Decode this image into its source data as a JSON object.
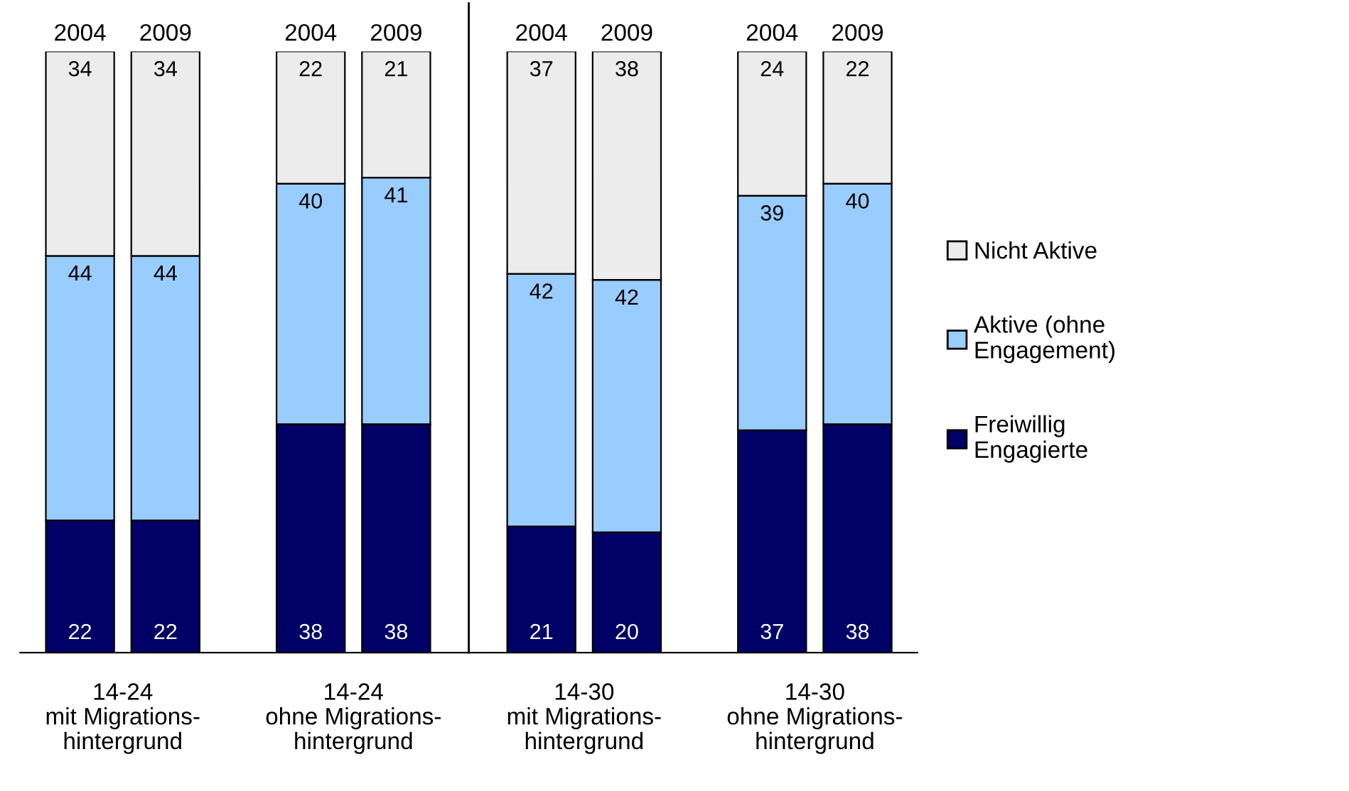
{
  "chart_data": {
    "type": "bar",
    "stacked": true,
    "data_labels": true,
    "legend": "right",
    "grid": false,
    "categories": [
      "2004",
      "2009",
      "2004",
      "2009",
      "2004",
      "2009",
      "2004",
      "2009"
    ],
    "series": [
      {
        "name": "Freiwillig\nEngagierte",
        "color": "#000066",
        "values": [
          22,
          22,
          38,
          38,
          21,
          20,
          37,
          38
        ]
      },
      {
        "name": "Aktive (ohne\nEngagement)",
        "color": "#99ccff",
        "values": [
          44,
          44,
          40,
          41,
          42,
          42,
          39,
          40
        ]
      },
      {
        "name": "Nicht Aktive",
        "color": "#ececec",
        "values": [
          34,
          34,
          22,
          21,
          37,
          38,
          24,
          22
        ]
      }
    ],
    "annotations": [
      "14-24\nmit Migrations-\nhintergrund",
      "14-24\nohne Migrations-\nhintergrund",
      "14-30\nmit Migrations-\nhintergrund",
      "14-30\nohne Migrations-\nhintergrund"
    ]
  }
}
